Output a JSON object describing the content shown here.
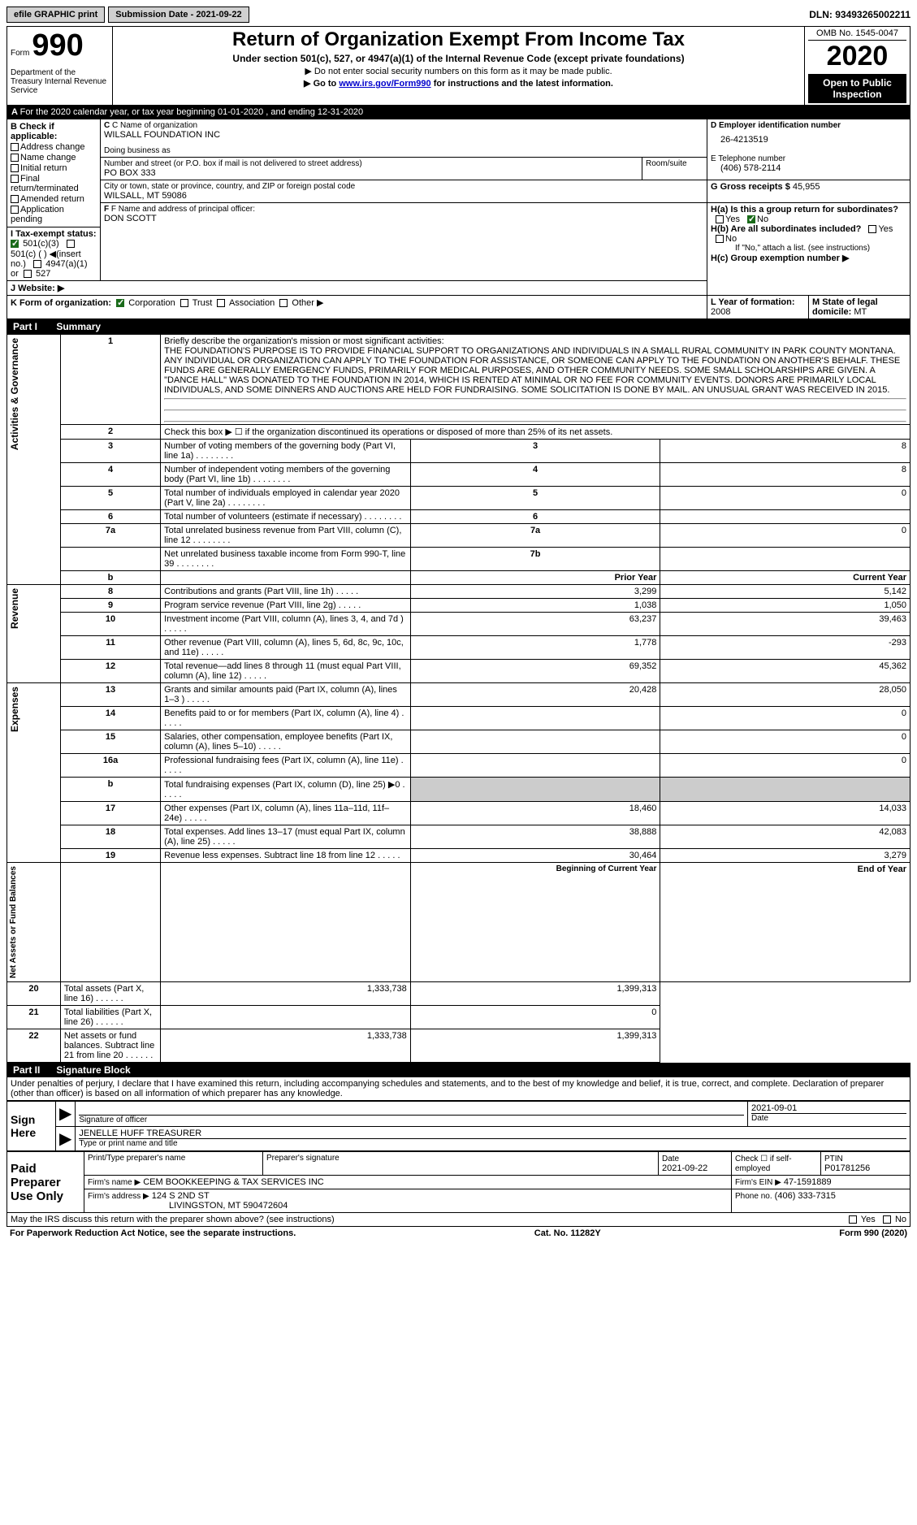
{
  "topbar": {
    "efile": "efile GRAPHIC print",
    "submission": "Submission Date - 2021-09-22",
    "dln": "DLN: 93493265002211"
  },
  "header": {
    "form_word": "Form",
    "form_num": "990",
    "dept": "Department of the Treasury\nInternal Revenue Service",
    "title": "Return of Organization Exempt From Income Tax",
    "sub": "Under section 501(c), 527, or 4947(a)(1) of the Internal Revenue Code (except private foundations)",
    "arrow1": "▶ Do not enter social security numbers on this form as it may be made public.",
    "arrow2_pre": "▶ Go to ",
    "arrow2_link": "www.irs.gov/Form990",
    "arrow2_post": " for instructions and the latest information.",
    "omb": "OMB No. 1545-0047",
    "year": "2020",
    "open": "Open to Public Inspection"
  },
  "line_a": "For the 2020 calendar year, or tax year beginning 01-01-2020    , and ending 12-31-2020",
  "sec_b": {
    "hdr": "B Check if applicable:",
    "items": [
      "Address change",
      "Name change",
      "Initial return",
      "Final return/terminated",
      "Amended return",
      "Application pending"
    ]
  },
  "sec_c": {
    "name_lbl": "C Name of organization",
    "name": "WILSALL FOUNDATION INC",
    "dba_lbl": "Doing business as",
    "street_lbl": "Number and street (or P.O. box if mail is not delivered to street address)",
    "room_lbl": "Room/suite",
    "street": "PO BOX 333",
    "city_lbl": "City or town, state or province, country, and ZIP or foreign postal code",
    "city": "WILSALL, MT  59086"
  },
  "sec_d": {
    "lbl": "D Employer identification number",
    "val": "26-4213519"
  },
  "sec_e": {
    "lbl": "E Telephone number",
    "val": "(406) 578-2114"
  },
  "sec_g": {
    "lbl": "G Gross receipts $",
    "val": "45,955"
  },
  "sec_f": {
    "lbl": "F  Name and address of principal officer:",
    "val": "DON SCOTT"
  },
  "sec_h": {
    "ha": "H(a)  Is this a group return for subordinates?",
    "hb": "H(b)  Are all subordinates included?",
    "hb_note": "If \"No,\" attach a list. (see instructions)",
    "hc": "H(c)  Group exemption number ▶",
    "yes": "Yes",
    "no": "No"
  },
  "sec_i": {
    "lbl": "I    Tax-exempt status:",
    "o1": "501(c)(3)",
    "o2": "501(c) (  ) ◀(insert no.)",
    "o3": "4947(a)(1) or",
    "o4": "527"
  },
  "sec_j": "J    Website: ▶",
  "sec_k": {
    "lbl": "K Form of organization:",
    "o1": "Corporation",
    "o2": "Trust",
    "o3": "Association",
    "o4": "Other ▶"
  },
  "sec_l": {
    "lbl": "L Year of formation:",
    "val": "2008"
  },
  "sec_m": {
    "lbl": "M State of legal domicile:",
    "val": "MT"
  },
  "part1": {
    "num": "Part I",
    "title": "Summary"
  },
  "tab_ag": "Activities & Governance",
  "tab_rev": "Revenue",
  "tab_exp": "Expenses",
  "tab_na": "Net Assets or\nFund Balances",
  "l1": {
    "lbl": "Briefly describe the organization's mission or most significant activities:",
    "txt": "THE FOUNDATION'S PURPOSE IS TO PROVIDE FINANCIAL SUPPORT TO ORGANIZATIONS AND INDIVIDUALS IN A SMALL RURAL COMMUNITY IN PARK COUNTY MONTANA. ANY INDIVIDUAL OR ORGANIZATION CAN APPLY TO THE FOUNDATION FOR ASSISTANCE, OR SOMEONE CAN APPLY TO THE FOUNDATION ON ANOTHER'S BEHALF. THESE FUNDS ARE GENERALLY EMERGENCY FUNDS, PRIMARILY FOR MEDICAL PURPOSES, AND OTHER COMMUNITY NEEDS. SOME SMALL SCHOLARSHIPS ARE GIVEN. A \"DANCE HALL\" WAS DONATED TO THE FOUNDATION IN 2014, WHICH IS RENTED AT MINIMAL OR NO FEE FOR COMMUNITY EVENTS. DONORS ARE PRIMARILY LOCAL INDIVIDUALS, AND SOME DINNERS AND AUCTIONS ARE HELD FOR FUNDRAISING. SOME SOLICITATION IS DONE BY MAIL. AN UNUSUAL GRANT WAS RECEIVED IN 2015."
  },
  "l2": "Check this box ▶ ☐ if the organization discontinued its operations or disposed of more than 25% of its net assets.",
  "rows_ag": [
    {
      "n": "3",
      "t": "Number of voting members of the governing body (Part VI, line 1a)",
      "rn": "3",
      "v": "8"
    },
    {
      "n": "4",
      "t": "Number of independent voting members of the governing body (Part VI, line 1b)",
      "rn": "4",
      "v": "8"
    },
    {
      "n": "5",
      "t": "Total number of individuals employed in calendar year 2020 (Part V, line 2a)",
      "rn": "5",
      "v": "0"
    },
    {
      "n": "6",
      "t": "Total number of volunteers (estimate if necessary)",
      "rn": "6",
      "v": ""
    },
    {
      "n": "7a",
      "t": "Total unrelated business revenue from Part VIII, column (C), line 12",
      "rn": "7a",
      "v": "0"
    },
    {
      "n": "",
      "t": "Net unrelated business taxable income from Form 990-T, line 39",
      "rn": "7b",
      "v": ""
    }
  ],
  "col_hdr": {
    "b": "b",
    "py": "Prior Year",
    "cy": "Current Year"
  },
  "rows_rev": [
    {
      "n": "8",
      "t": "Contributions and grants (Part VIII, line 1h)",
      "py": "3,299",
      "cy": "5,142"
    },
    {
      "n": "9",
      "t": "Program service revenue (Part VIII, line 2g)",
      "py": "1,038",
      "cy": "1,050"
    },
    {
      "n": "10",
      "t": "Investment income (Part VIII, column (A), lines 3, 4, and 7d )",
      "py": "63,237",
      "cy": "39,463"
    },
    {
      "n": "11",
      "t": "Other revenue (Part VIII, column (A), lines 5, 6d, 8c, 9c, 10c, and 11e)",
      "py": "1,778",
      "cy": "-293"
    },
    {
      "n": "12",
      "t": "Total revenue—add lines 8 through 11 (must equal Part VIII, column (A), line 12)",
      "py": "69,352",
      "cy": "45,362"
    }
  ],
  "rows_exp": [
    {
      "n": "13",
      "t": "Grants and similar amounts paid (Part IX, column (A), lines 1–3 )",
      "py": "20,428",
      "cy": "28,050"
    },
    {
      "n": "14",
      "t": "Benefits paid to or for members (Part IX, column (A), line 4)",
      "py": "",
      "cy": "0"
    },
    {
      "n": "15",
      "t": "Salaries, other compensation, employee benefits (Part IX, column (A), lines 5–10)",
      "py": "",
      "cy": "0"
    },
    {
      "n": "16a",
      "t": "Professional fundraising fees (Part IX, column (A), line 11e)",
      "py": "",
      "cy": "0"
    },
    {
      "n": "b",
      "t": "Total fundraising expenses (Part IX, column (D), line 25) ▶0",
      "py": "SHADE",
      "cy": "SHADE"
    },
    {
      "n": "17",
      "t": "Other expenses (Part IX, column (A), lines 11a–11d, 11f–24e)",
      "py": "18,460",
      "cy": "14,033"
    },
    {
      "n": "18",
      "t": "Total expenses. Add lines 13–17 (must equal Part IX, column (A), line 25)",
      "py": "38,888",
      "cy": "42,083"
    },
    {
      "n": "19",
      "t": "Revenue less expenses. Subtract line 18 from line 12",
      "py": "30,464",
      "cy": "3,279"
    }
  ],
  "col_hdr2": {
    "py": "Beginning of Current Year",
    "cy": "End of Year"
  },
  "rows_na": [
    {
      "n": "20",
      "t": "Total assets (Part X, line 16)",
      "py": "1,333,738",
      "cy": "1,399,313"
    },
    {
      "n": "21",
      "t": "Total liabilities (Part X, line 26)",
      "py": "",
      "cy": "0"
    },
    {
      "n": "22",
      "t": "Net assets or fund balances. Subtract line 21 from line 20",
      "py": "1,333,738",
      "cy": "1,399,313"
    }
  ],
  "part2": {
    "num": "Part II",
    "title": "Signature Block"
  },
  "perjury": "Under penalties of perjury, I declare that I have examined this return, including accompanying schedules and statements, and to the best of my knowledge and belief, it is true, correct, and complete. Declaration of preparer (other than officer) is based on all information of which preparer has any knowledge.",
  "sign": {
    "here": "Sign Here",
    "sig_lbl": "Signature of officer",
    "date": "2021-09-01",
    "date_lbl": "Date",
    "name": "JENELLE HUFF  TREASURER",
    "name_lbl": "Type or print name and title"
  },
  "paid": {
    "lbl": "Paid Preparer Use Only",
    "prep_name_lbl": "Print/Type preparer's name",
    "prep_sig_lbl": "Preparer's signature",
    "date_lbl": "Date",
    "date": "2021-09-22",
    "check_lbl": "Check ☐ if self-employed",
    "ptin_lbl": "PTIN",
    "ptin": "P01781256",
    "firm_name_lbl": "Firm's name    ▶",
    "firm_name": "CEM BOOKKEEPING & TAX SERVICES INC",
    "firm_ein_lbl": "Firm's EIN ▶",
    "firm_ein": "47-1591889",
    "firm_addr_lbl": "Firm's address ▶",
    "firm_addr": "124 S 2ND ST",
    "firm_city": "LIVINGSTON, MT  590472604",
    "phone_lbl": "Phone no.",
    "phone": "(406) 333-7315"
  },
  "discuss": "May the IRS discuss this return with the preparer shown above? (see instructions)",
  "footer": {
    "pra": "For Paperwork Reduction Act Notice, see the separate instructions.",
    "cat": "Cat. No. 11282Y",
    "form": "Form 990 (2020)"
  }
}
